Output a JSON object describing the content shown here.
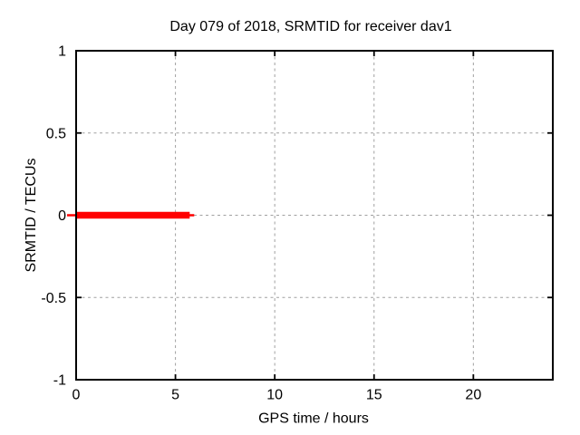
{
  "chart_data": {
    "type": "line",
    "title": "Day 079 of 2018, SRMTID for receiver dav1",
    "xlabel": "GPS time / hours",
    "ylabel": "SRMTID / TECUs",
    "xlim": [
      0,
      24
    ],
    "ylim": [
      -1,
      1
    ],
    "xticks": [
      0,
      5,
      10,
      15,
      20
    ],
    "yticks": [
      1,
      0.5,
      0,
      -0.5,
      -1
    ],
    "grid": true,
    "legend": "none",
    "background": "#ffffff",
    "colors": {
      "series": "#ff0000",
      "grid": "#a0a0a0",
      "axis": "#000000",
      "text": "#000000"
    },
    "series": [
      {
        "name": "SRMTID",
        "color": "#ff0000",
        "style": "thick horizontal segment (dense point markers over a thin line)",
        "x_start": 0,
        "x_end": 5.9,
        "value": 0,
        "points": [
          [
            0,
            0
          ],
          [
            5.9,
            0
          ]
        ]
      }
    ]
  }
}
